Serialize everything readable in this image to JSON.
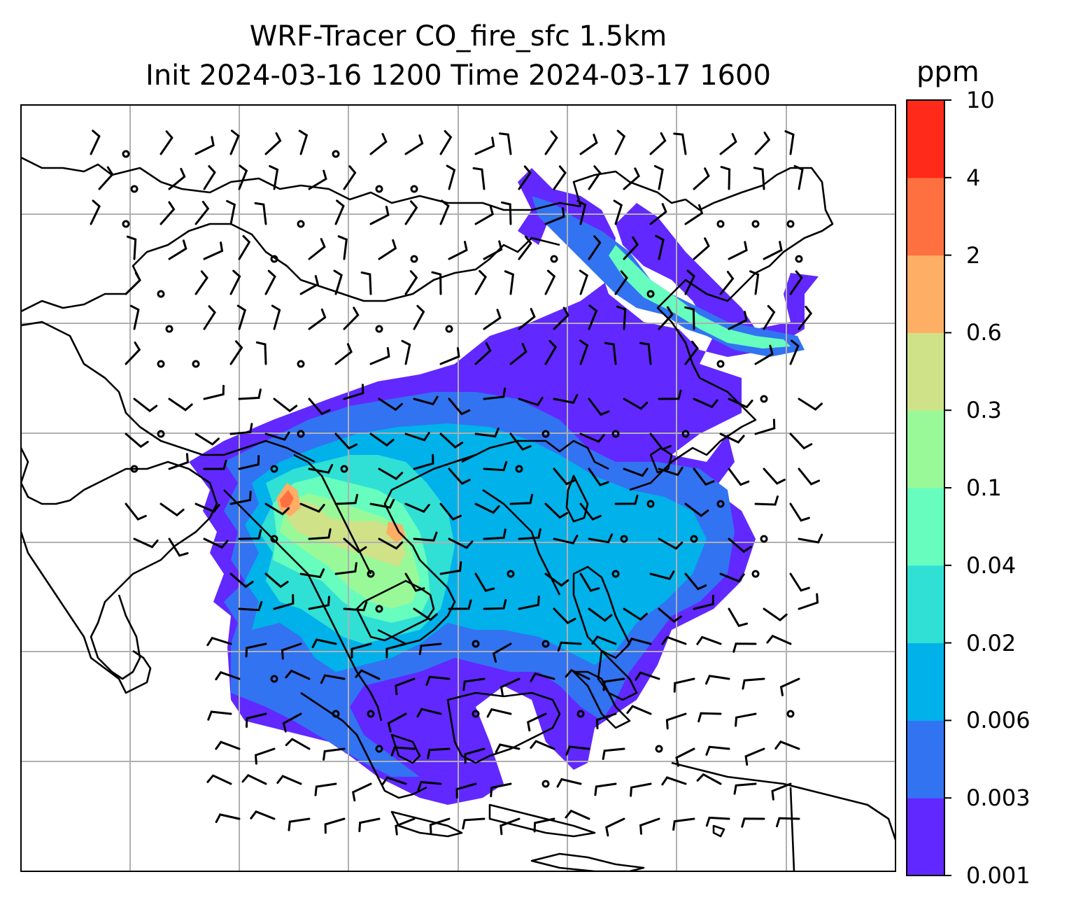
{
  "title": {
    "line1": "WRF-Tracer CO_fire_sfc 1.5km",
    "line2": "Init 2024-03-16 1200 Time 2024-03-17 1600"
  },
  "colorbar": {
    "unit": "ppm",
    "levels": [
      "0.001",
      "0.003",
      "0.006",
      "0.02",
      "0.04",
      "0.1",
      "0.3",
      "0.6",
      "2",
      "4",
      "10"
    ],
    "colors": [
      "#6128ff",
      "#3273f2",
      "#01b1ea",
      "#30e0d5",
      "#66fdbf",
      "#99f999",
      "#cfe288",
      "#feae65",
      "#ff7040",
      "#ff2a19"
    ]
  },
  "map": {
    "gridlines": true,
    "coastline_color": "#000000",
    "grid_color": "#b0b0b0",
    "field": "CO_fire_sfc",
    "overlay": "wind barbs"
  }
}
